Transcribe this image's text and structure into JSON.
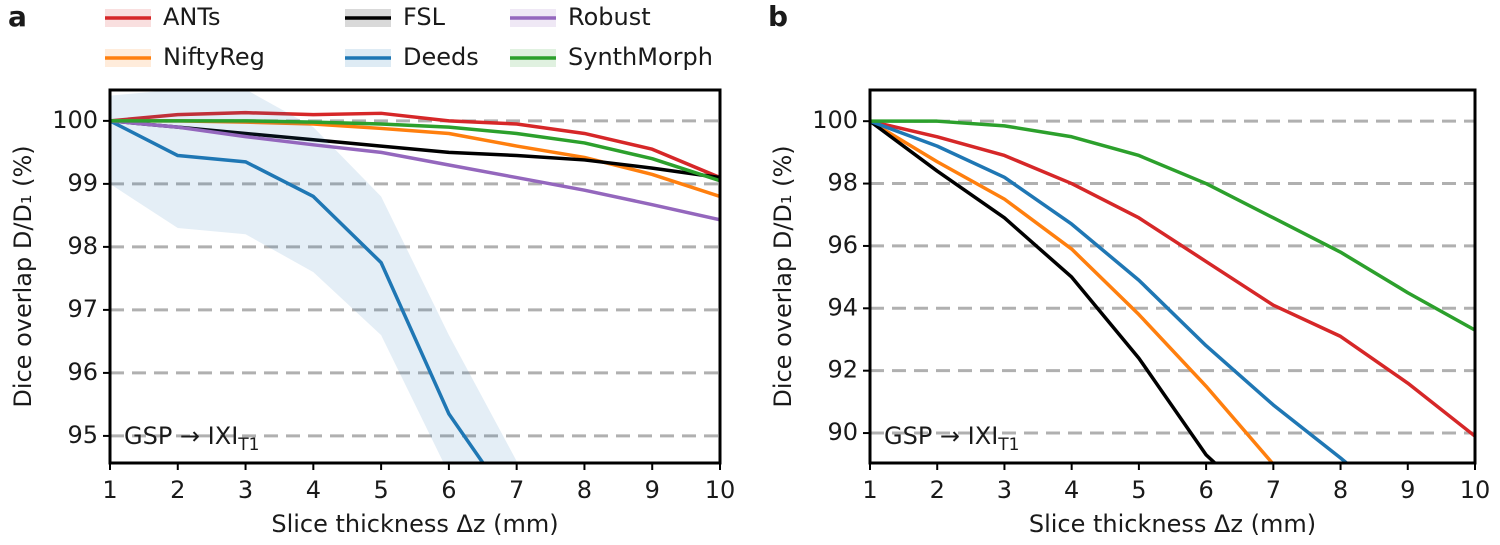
{
  "chart_data": [
    {
      "type": "line",
      "panel_label": "a",
      "xlabel": "Slice thickness Δz (mm)",
      "ylabel": "Dice overlap D/D₁ (%)",
      "annotation": {
        "text": "GSP → IXI",
        "subscript": "T1"
      },
      "x": [
        1,
        2,
        3,
        4,
        5,
        6,
        7,
        8,
        9,
        10
      ],
      "xlim": [
        1,
        10
      ],
      "xticks": [
        1,
        2,
        3,
        4,
        5,
        6,
        7,
        8,
        9,
        10
      ],
      "ylim": [
        94.57,
        100.49
      ],
      "yticks": [
        95,
        96,
        97,
        98,
        99,
        100
      ],
      "grid": "y",
      "series": [
        {
          "name": "ANTs",
          "color": "#d62728",
          "values": [
            100,
            100.1,
            100.13,
            100.1,
            100.12,
            100.0,
            99.95,
            99.8,
            99.55,
            99.1
          ]
        },
        {
          "name": "NiftyReg",
          "color": "#ff7f0e",
          "values": [
            100,
            100.0,
            99.98,
            99.95,
            99.88,
            99.8,
            99.6,
            99.42,
            99.15,
            98.8
          ]
        },
        {
          "name": "FSL",
          "color": "#000000",
          "values": [
            100,
            99.9,
            99.8,
            99.7,
            99.6,
            99.5,
            99.45,
            99.38,
            99.25,
            99.1
          ]
        },
        {
          "name": "Deeds",
          "color": "#1f77b4",
          "values": [
            100,
            99.45,
            99.35,
            98.8,
            97.75,
            95.35,
            93.8,
            null,
            null,
            null
          ],
          "lower": [
            99.0,
            98.3,
            98.2,
            97.6,
            96.6,
            94.4,
            null,
            null,
            null,
            null
          ],
          "upper": [
            100.4,
            100.5,
            100.5,
            99.9,
            98.8,
            96.6,
            94.6,
            null,
            null,
            null
          ]
        },
        {
          "name": "Robust",
          "color": "#9467bd",
          "values": [
            100,
            99.9,
            99.75,
            99.62,
            99.5,
            99.3,
            99.1,
            98.9,
            98.67,
            98.43
          ]
        },
        {
          "name": "SynthMorph",
          "color": "#2ca02c",
          "values": [
            100,
            100,
            100,
            99.98,
            99.95,
            99.9,
            99.8,
            99.65,
            99.4,
            99.05
          ]
        }
      ]
    },
    {
      "type": "line",
      "panel_label": "b",
      "xlabel": "Slice thickness Δz (mm)",
      "ylabel": "Dice overlap D/D₁ (%)",
      "annotation": {
        "text": "GSP → IXI",
        "subscript": "T1"
      },
      "x": [
        1,
        2,
        3,
        4,
        5,
        6,
        7,
        8,
        9,
        10
      ],
      "xlim": [
        1,
        10
      ],
      "xticks": [
        1,
        2,
        3,
        4,
        5,
        6,
        7,
        8,
        9,
        10
      ],
      "ylim": [
        89.04,
        101
      ],
      "yticks": [
        90,
        92,
        94,
        96,
        98,
        100
      ],
      "grid": "y",
      "series": [
        {
          "color": "#d62728",
          "values": [
            100,
            99.5,
            98.9,
            98.0,
            96.9,
            95.5,
            94.1,
            93.1,
            91.6,
            89.9
          ]
        },
        {
          "color": "#ff7f0e",
          "values": [
            100,
            98.7,
            97.5,
            95.9,
            93.8,
            91.5,
            89.0,
            null,
            null,
            null
          ]
        },
        {
          "color": "#000000",
          "values": [
            100,
            98.4,
            96.9,
            95.0,
            92.4,
            89.3,
            87.3,
            null,
            null,
            null
          ]
        },
        {
          "color": "#1f77b4",
          "values": [
            100,
            99.2,
            98.2,
            96.7,
            94.9,
            92.8,
            90.9,
            89.2,
            87.4,
            null
          ]
        },
        {
          "color": "#2ca02c",
          "values": [
            100,
            100,
            99.85,
            99.5,
            98.9,
            98.0,
            96.9,
            95.8,
            94.5,
            93.3
          ]
        }
      ]
    }
  ]
}
